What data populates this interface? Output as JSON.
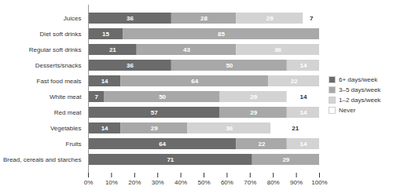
{
  "chart_data": {
    "type": "bar",
    "orientation": "horizontal",
    "stacked": true,
    "data_labels": true,
    "grid": false,
    "legend": "right",
    "categories": [
      "Juices",
      "Diet soft drinks",
      "Regular soft drinks",
      "Desserts/snacks",
      "Fast food meals",
      "White meat",
      "Red meat",
      "Vegetables",
      "Fruits",
      "Bread, cereals and starches"
    ],
    "series": [
      {
        "name": "6+ days/week",
        "color": "#6b6b6b",
        "values": [
          36,
          15,
          21,
          36,
          14,
          7,
          57,
          14,
          64,
          71
        ]
      },
      {
        "name": "3–5 days/week",
        "color": "#a8a8a8",
        "values": [
          28,
          85,
          43,
          50,
          64,
          50,
          29,
          29,
          22,
          29
        ]
      },
      {
        "name": "1–2 days/week",
        "color": "#d3d3d3",
        "values": [
          29,
          0,
          36,
          14,
          22,
          29,
          14,
          36,
          14,
          0
        ]
      },
      {
        "name": "Never",
        "color": "#ffffff",
        "values": [
          7,
          0,
          0,
          0,
          0,
          14,
          0,
          21,
          0,
          0
        ]
      }
    ],
    "xlim": [
      0,
      100
    ],
    "xticks": [
      {
        "value": 0,
        "label": "0%"
      },
      {
        "value": 10,
        "label": "10%"
      },
      {
        "value": 20,
        "label": "20%"
      },
      {
        "value": 30,
        "label": "30%"
      },
      {
        "value": 40,
        "label": "40%"
      },
      {
        "value": 50,
        "label": "50%"
      },
      {
        "value": 60,
        "label": "60%"
      },
      {
        "value": 70,
        "label": "70%"
      },
      {
        "value": 80,
        "label": "80%"
      },
      {
        "value": 90,
        "label": "90%"
      },
      {
        "value": 100,
        "label": "100%"
      }
    ]
  }
}
